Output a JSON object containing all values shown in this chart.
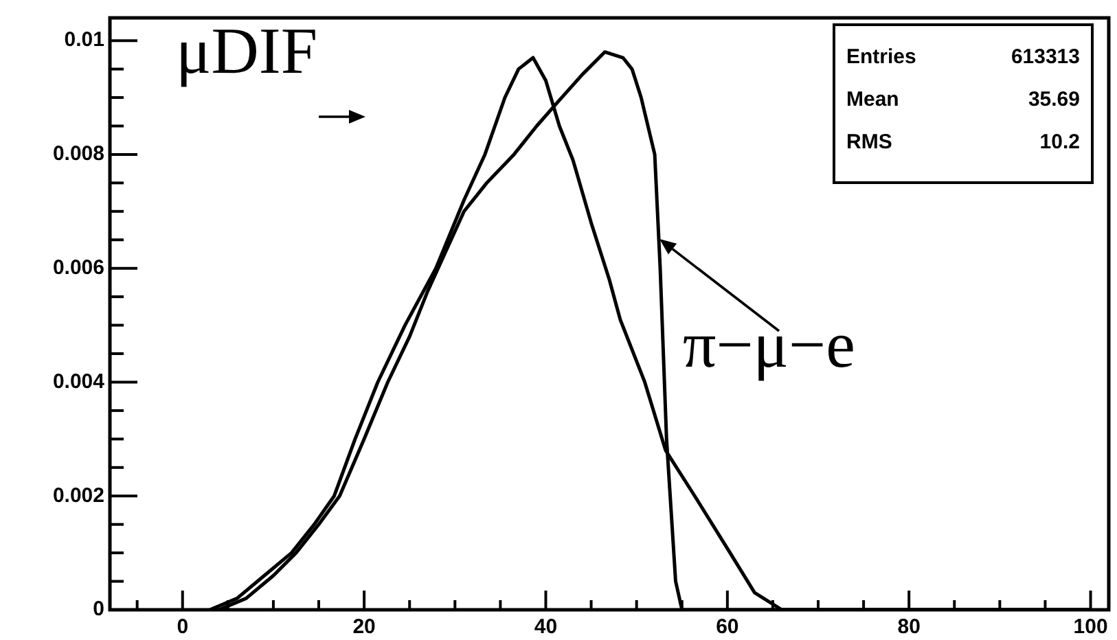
{
  "chart_data": {
    "type": "line",
    "xlim": [
      -8,
      102
    ],
    "ylim": [
      0,
      0.0104
    ],
    "xticks": [
      {
        "value": -5,
        "label": null
      },
      0,
      {
        "value": 5,
        "label": null
      },
      {
        "value": 10,
        "label": null
      },
      {
        "value": 15,
        "label": null
      },
      20,
      {
        "value": 25,
        "label": null
      },
      {
        "value": 30,
        "label": null
      },
      {
        "value": 35,
        "label": null
      },
      40,
      {
        "value": 45,
        "label": null
      },
      {
        "value": 50,
        "label": null
      },
      {
        "value": 55,
        "label": null
      },
      60,
      {
        "value": 65,
        "label": null
      },
      {
        "value": 70,
        "label": null
      },
      {
        "value": 75,
        "label": null
      },
      80,
      {
        "value": 85,
        "label": null
      },
      {
        "value": 90,
        "label": null
      },
      {
        "value": 95,
        "label": null
      },
      100
    ],
    "yticks": [
      0,
      {
        "value": 0.0005,
        "label": null
      },
      {
        "value": 0.001,
        "label": null
      },
      {
        "value": 0.0015,
        "label": null
      },
      0.002,
      {
        "value": 0.0025,
        "label": null
      },
      {
        "value": 0.003,
        "label": null
      },
      {
        "value": 0.0035,
        "label": null
      },
      0.004,
      {
        "value": 0.0045,
        "label": null
      },
      {
        "value": 0.005,
        "label": null
      },
      {
        "value": 0.0055,
        "label": null
      },
      0.006,
      {
        "value": 0.0065,
        "label": null
      },
      {
        "value": 0.007,
        "label": null
      },
      {
        "value": 0.0075,
        "label": null
      },
      0.008,
      {
        "value": 0.0085,
        "label": null
      },
      {
        "value": 0.009,
        "label": null
      },
      {
        "value": 0.0095,
        "label": null
      },
      0.01
    ],
    "grid": false,
    "legend": "top left",
    "marker": "none",
    "line_style": "solid",
    "series": [
      {
        "name": "μDIF",
        "color": "#000000",
        "x": [
          3,
          6,
          9,
          12,
          14.5,
          16.7,
          19,
          21.5,
          24.5,
          27.9,
          31,
          33.3,
          35.5,
          37,
          38.6,
          40,
          41.5,
          43,
          45,
          47,
          48.2,
          50.9,
          53.2,
          56.4,
          60.3,
          63,
          66,
          70,
          100
        ],
        "values": [
          0,
          0.0002,
          0.0006,
          0.001,
          0.0015,
          0.002,
          0.003,
          0.004,
          0.005,
          0.006,
          0.0072,
          0.008,
          0.009,
          0.0095,
          0.0097,
          0.0093,
          0.0085,
          0.0079,
          0.0068,
          0.0058,
          0.0051,
          0.004,
          0.0028,
          0.002,
          0.001,
          0.0003,
          0,
          0,
          0
        ]
      },
      {
        "name": "π−μ−e",
        "color": "#000000",
        "x": [
          4,
          7,
          10,
          12.5,
          15,
          17.3,
          20,
          22.6,
          25,
          27,
          31,
          33.5,
          36.5,
          39,
          41.2,
          44,
          46.5,
          48.5,
          49.5,
          50.5,
          52,
          52.6,
          53.3,
          54.3,
          55,
          70,
          100
        ],
        "values": [
          0,
          0.0002,
          0.0006,
          0.001,
          0.0015,
          0.002,
          0.003,
          0.004,
          0.0048,
          0.0056,
          0.007,
          0.0075,
          0.008,
          0.0085,
          0.0089,
          0.0094,
          0.0098,
          0.0097,
          0.0095,
          0.009,
          0.008,
          0.006,
          0.003,
          0.0005,
          0,
          0,
          0
        ]
      }
    ],
    "annotations": [
      "Entries 613313",
      "Mean 35.69",
      "RMS 10.2"
    ]
  }
}
